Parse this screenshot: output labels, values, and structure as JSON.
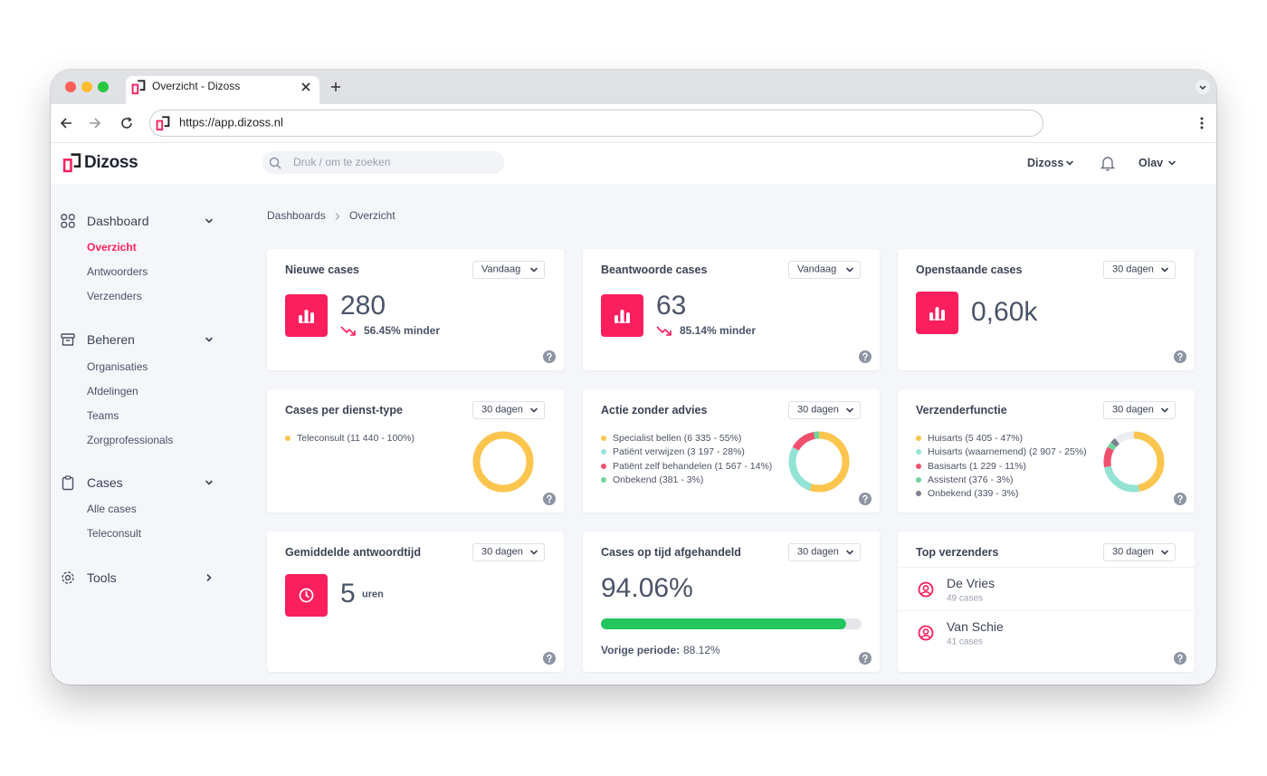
{
  "browser": {
    "tab_title": "Overzicht - Dizoss",
    "url": "https://app.dizoss.nl"
  },
  "header": {
    "logo": "Dizoss",
    "search_placeholder": "Druk / om te zoeken",
    "organisation": "Dizoss",
    "user": "Olav"
  },
  "sidebar": {
    "groups": [
      {
        "label": "Dashboard",
        "items": [
          "Overzicht",
          "Antwoorders",
          "Verzenders"
        ]
      },
      {
        "label": "Beheren",
        "items": [
          "Organisaties",
          "Afdelingen",
          "Teams",
          "Zorgprofessionals"
        ]
      },
      {
        "label": "Cases",
        "items": [
          "Alle cases",
          "Teleconsult"
        ]
      },
      {
        "label": "Tools",
        "items": []
      }
    ]
  },
  "breadcrumb": [
    "Dashboards",
    "Overzicht"
  ],
  "cards": [
    {
      "title": "Nieuwe cases",
      "period": "Vandaag",
      "value": "280",
      "trend": "56.45% minder"
    },
    {
      "title": "Beantwoorde cases",
      "period": "Vandaag",
      "value": "63",
      "trend": "85.14% minder"
    },
    {
      "title": "Openstaande cases",
      "period": "30 dagen",
      "value": "0,60k"
    },
    {
      "title": "Cases per dienst-type",
      "period": "30 dagen",
      "legend": [
        {
          "label": "Teleconsult (11 440 - 100%)",
          "color": "#fcc54d",
          "percent": 100
        }
      ]
    },
    {
      "title": "Actie zonder advies",
      "period": "30 dagen",
      "legend": [
        {
          "label": "Specialist bellen (6 335 - 55%)",
          "color": "#fcc54d",
          "percent": 55
        },
        {
          "label": "Patiënt verwijzen (3 197 - 28%)",
          "color": "#93e3d5",
          "percent": 28
        },
        {
          "label": "Patiënt zelf behandelen (1 567 - 14%)",
          "color": "#f0506e",
          "percent": 14
        },
        {
          "label": "Onbekend (381 - 3%)",
          "color": "#6fd59c",
          "percent": 3
        }
      ]
    },
    {
      "title": "Verzenderfunctie",
      "period": "30 dagen",
      "legend": [
        {
          "label": "Huisarts (5 405 - 47%)",
          "color": "#fcc54d",
          "percent": 47
        },
        {
          "label": "Huisarts (waarnemend) (2 907 - 25%)",
          "color": "#93e3d5",
          "percent": 25
        },
        {
          "label": "Basisarts (1 229 - 11%)",
          "color": "#f0506e",
          "percent": 11
        },
        {
          "label": "Assistent (376 - 3%)",
          "color": "#6fd59c",
          "percent": 3
        },
        {
          "label": "Onbekend (339 - 3%)",
          "color": "#7b7f8c",
          "percent": 3
        }
      ]
    },
    {
      "title": "Gemiddelde antwoordtijd",
      "period": "30 dagen",
      "value": "5",
      "unit": "uren"
    },
    {
      "title": "Cases op tijd afgehandeld",
      "period": "30 dagen",
      "progress": {
        "value": 94.06,
        "value_label": "94.06%"
      },
      "previous_label": "Vorige periode:",
      "previous": "88.12%"
    },
    {
      "title": "Top verzenders",
      "period": "30 dagen",
      "list": [
        {
          "name": "De Vries",
          "sub": "49 cases"
        },
        {
          "name": "Van Schie",
          "sub": "41 cases"
        }
      ]
    }
  ]
}
